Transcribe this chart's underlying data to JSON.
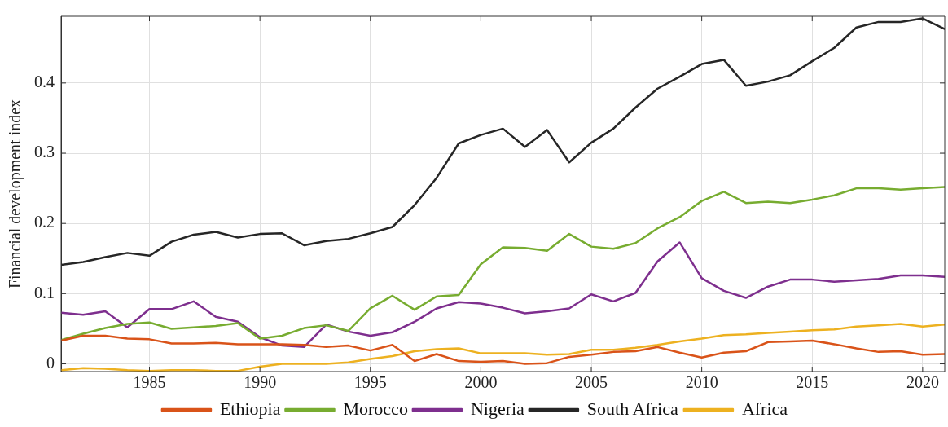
{
  "chart_data": {
    "type": "line",
    "ylabel": "Financial development index",
    "x": [
      1981,
      1982,
      1983,
      1984,
      1985,
      1986,
      1987,
      1988,
      1989,
      1990,
      1991,
      1992,
      1993,
      1994,
      1995,
      1996,
      1997,
      1998,
      1999,
      2000,
      2001,
      2002,
      2003,
      2004,
      2005,
      2006,
      2007,
      2008,
      2009,
      2010,
      2011,
      2012,
      2013,
      2014,
      2015,
      2016,
      2017,
      2018,
      2019,
      2020,
      2021
    ],
    "series": [
      {
        "name": "Ethiopia",
        "color": "#d95319",
        "values": [
          0.033,
          0.04,
          0.04,
          0.036,
          0.035,
          0.029,
          0.029,
          0.03,
          0.028,
          0.028,
          0.028,
          0.027,
          0.024,
          0.026,
          0.019,
          0.027,
          0.004,
          0.014,
          0.004,
          0.003,
          0.004,
          0.0,
          0.001,
          0.01,
          0.013,
          0.017,
          0.018,
          0.024,
          0.016,
          0.009,
          0.016,
          0.018,
          0.031,
          0.032,
          0.033,
          0.028,
          0.022,
          0.017,
          0.018,
          0.013,
          0.014
        ]
      },
      {
        "name": "Morocco",
        "color": "#77ac30",
        "values": [
          0.034,
          0.043,
          0.051,
          0.057,
          0.059,
          0.05,
          0.052,
          0.054,
          0.058,
          0.036,
          0.04,
          0.051,
          0.055,
          0.047,
          0.079,
          0.097,
          0.077,
          0.096,
          0.098,
          0.142,
          0.166,
          0.165,
          0.161,
          0.185,
          0.167,
          0.164,
          0.172,
          0.193,
          0.209,
          0.232,
          0.245,
          0.229,
          0.231,
          0.229,
          0.234,
          0.24,
          0.25,
          0.25,
          0.248,
          0.25,
          0.252
        ]
      },
      {
        "name": "Nigeria",
        "color": "#7e2f8e",
        "values": [
          0.073,
          0.07,
          0.075,
          0.052,
          0.078,
          0.078,
          0.089,
          0.067,
          0.06,
          0.038,
          0.026,
          0.024,
          0.056,
          0.046,
          0.04,
          0.045,
          0.06,
          0.079,
          0.088,
          0.086,
          0.08,
          0.072,
          0.075,
          0.079,
          0.099,
          0.089,
          0.101,
          0.146,
          0.173,
          0.122,
          0.104,
          0.094,
          0.11,
          0.12,
          0.12,
          0.117,
          0.119,
          0.121,
          0.126,
          0.126,
          0.124
        ]
      },
      {
        "name": "South Africa",
        "color": "#262626",
        "values": [
          0.141,
          0.145,
          0.152,
          0.158,
          0.154,
          0.174,
          0.184,
          0.188,
          0.18,
          0.185,
          0.186,
          0.169,
          0.175,
          0.178,
          0.186,
          0.195,
          0.226,
          0.265,
          0.314,
          0.326,
          0.335,
          0.309,
          0.333,
          0.287,
          0.315,
          0.335,
          0.365,
          0.392,
          0.409,
          0.427,
          0.433,
          0.396,
          0.402,
          0.411,
          0.431,
          0.45,
          0.479,
          0.487,
          0.487,
          0.492,
          0.477
        ]
      },
      {
        "name": "Africa",
        "color": "#edb120",
        "values": [
          -0.009,
          -0.006,
          -0.007,
          -0.009,
          -0.01,
          -0.009,
          -0.009,
          -0.01,
          -0.01,
          -0.004,
          0.0,
          0.0,
          0.0,
          0.002,
          0.007,
          0.011,
          0.018,
          0.021,
          0.022,
          0.015,
          0.015,
          0.015,
          0.013,
          0.014,
          0.02,
          0.02,
          0.023,
          0.027,
          0.032,
          0.036,
          0.041,
          0.042,
          0.044,
          0.046,
          0.048,
          0.049,
          0.053,
          0.055,
          0.057,
          0.053,
          0.056
        ]
      }
    ],
    "xlim": [
      1981,
      2021
    ],
    "xticks": [
      1985,
      1990,
      1995,
      2000,
      2005,
      2010,
      2015,
      2020
    ],
    "ylim": [
      -0.011,
      0.495
    ],
    "yticks": [
      0,
      0.1,
      0.2,
      0.3,
      0.4
    ],
    "grid": true,
    "legend": "bottom",
    "marker": "none",
    "line_style": "solid"
  }
}
